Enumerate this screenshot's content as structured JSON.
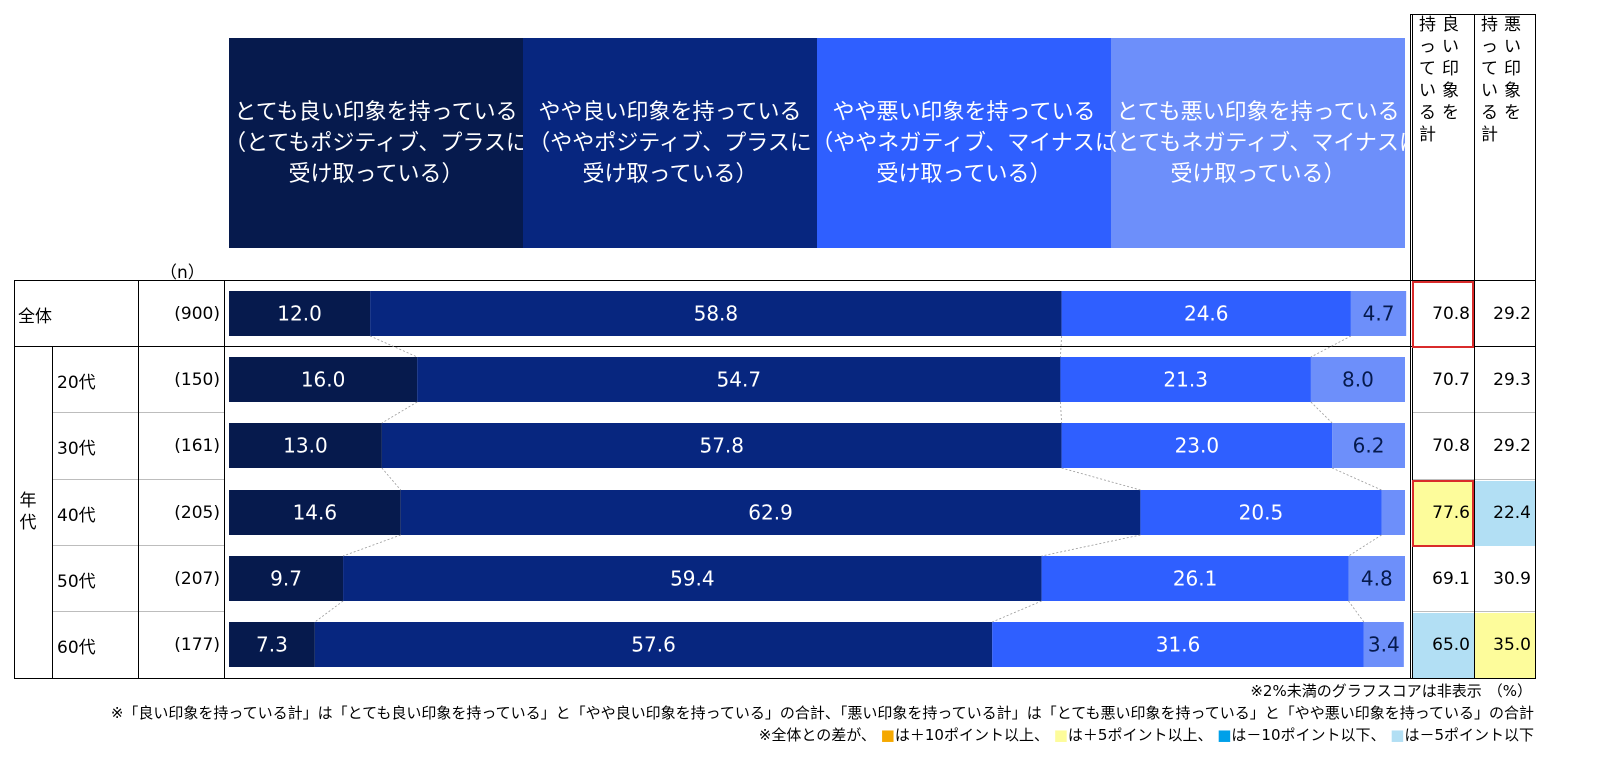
{
  "chart_data": {
    "type": "bar",
    "orientation": "horizontal",
    "stacked": true,
    "unit": "（%）",
    "n_label": "（n）",
    "series": [
      {
        "name": "とても良い印象を持っている\n（とてもポジティブ、プラスに\n受け取っている）",
        "color": "#061a4d",
        "values": [
          12.0,
          16.0,
          13.0,
          14.6,
          9.7,
          7.3
        ]
      },
      {
        "name": "やや良い印象を持っている\n（ややポジティブ、プラスに\n受け取っている）",
        "color": "#07267f",
        "values": [
          58.8,
          54.7,
          57.8,
          62.9,
          59.4,
          57.6
        ]
      },
      {
        "name": "やや悪い印象を持っている\n（ややネガティブ、マイナスに\n受け取っている）",
        "color": "#2f5fff",
        "values": [
          24.6,
          21.3,
          23.0,
          20.5,
          26.1,
          31.6
        ]
      },
      {
        "name": "とても悪い印象を持っている\n（とてもネガティブ、マイナスに\n受け取っている）",
        "color": "#6d8ffa",
        "values": [
          4.7,
          8.0,
          6.2,
          2.0,
          4.8,
          3.4
        ]
      }
    ],
    "hidden_label_threshold": 2,
    "rows": [
      {
        "label": "全体",
        "group": "",
        "n": "(900)",
        "good": "70.8",
        "bad": "29.2"
      },
      {
        "label": "20代",
        "group": "年代",
        "n": "(150)",
        "good": "70.7",
        "bad": "29.3"
      },
      {
        "label": "30代",
        "group": "年代",
        "n": "(161)",
        "good": "70.8",
        "bad": "29.2"
      },
      {
        "label": "40代",
        "group": "年代",
        "n": "(205)",
        "good": "77.6",
        "bad": "22.4"
      },
      {
        "label": "50代",
        "group": "年代",
        "n": "(207)",
        "good": "69.1",
        "bad": "30.9"
      },
      {
        "label": "60代",
        "group": "年代",
        "n": "(177)",
        "good": "65.0",
        "bad": "35.0"
      }
    ],
    "group_label": "年代",
    "sum_columns": [
      {
        "title": "良い印象を持っている計",
        "columns": [
          "持っている計",
          "良い印象を"
        ]
      },
      {
        "title": "悪い印象を持っている計",
        "columns": [
          "持っている計",
          "悪い印象を"
        ]
      }
    ],
    "highlights": {
      "good": [
        "none",
        "none",
        "none",
        "plus5",
        "none",
        "minus5"
      ],
      "bad": [
        "none",
        "none",
        "none",
        "minus5",
        "none",
        "plus5"
      ],
      "red_boxes_good": [
        0,
        3
      ]
    },
    "highlight_colors": {
      "plus10": "#f5a800",
      "plus5": "#fdfc9b",
      "minus10": "#00a0e9",
      "minus5": "#b2dff4"
    }
  },
  "notes": [
    "※2%未満のグラフスコアは非表示",
    "※「良い印象を持っている計」は「とても良い印象を持っている」と「やや良い印象を持っている」の合計、「悪い印象を持っている計」は「とても悪い印象を持っている」と「やや悪い印象を持っている」の合計",
    "※全体との差が、 ■は＋10ポイント以上、 ■は＋5ポイント以上、 ■は－10ポイント以下、 ■は－5ポイント以下"
  ]
}
